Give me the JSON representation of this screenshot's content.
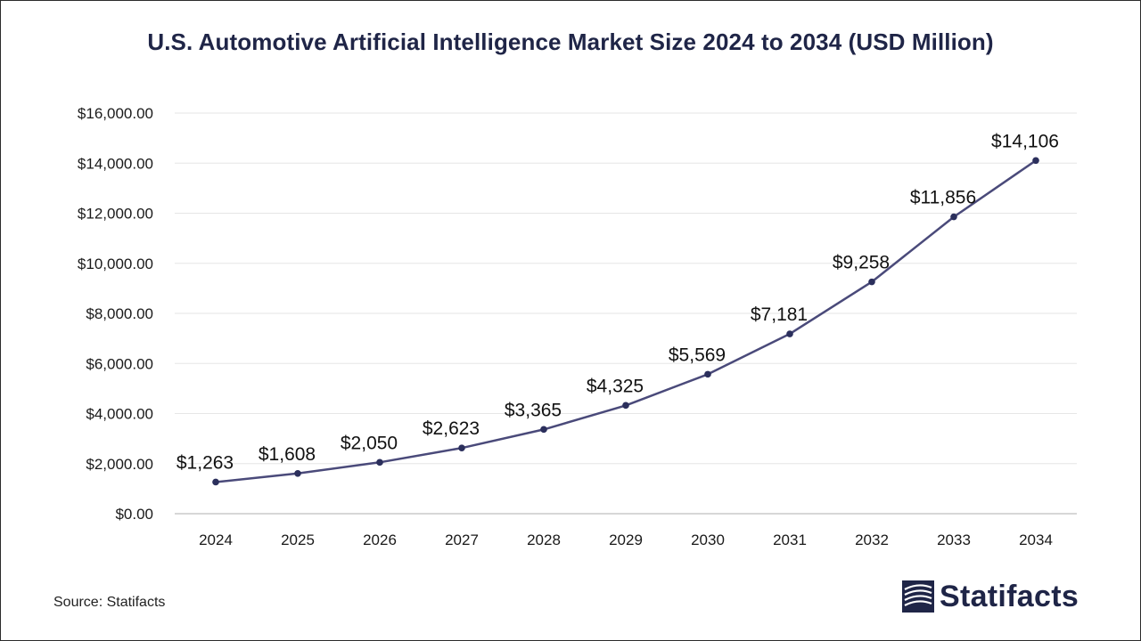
{
  "chart_data": {
    "type": "line",
    "title": "U.S. Automotive Artificial Intelligence Market Size 2024 to 2034 (USD Million)",
    "xlabel": "",
    "ylabel": "",
    "categories": [
      "2024",
      "2025",
      "2026",
      "2027",
      "2028",
      "2029",
      "2030",
      "2031",
      "2032",
      "2033",
      "2034"
    ],
    "values": [
      1263,
      1608,
      2050,
      2623,
      3365,
      4325,
      5569,
      7181,
      9258,
      11856,
      14106
    ],
    "data_labels": [
      "$1,263",
      "$1,608",
      "$2,050",
      "$2,623",
      "$3,365",
      "$4,325",
      "$5,569",
      "$7,181",
      "$9,258",
      "$11,856",
      "$14,106"
    ],
    "ylim": [
      0,
      16000
    ],
    "yticks": [
      0,
      2000,
      4000,
      6000,
      8000,
      10000,
      12000,
      14000,
      16000
    ],
    "ytick_labels": [
      "$0.00",
      "$2,000.00",
      "$4,000.00",
      "$6,000.00",
      "$8,000.00",
      "$10,000.00",
      "$12,000.00",
      "$14,000.00",
      "$16,000.00"
    ],
    "grid": true,
    "legend": "none",
    "line_color": "#4a4a7a",
    "marker_color": "#2b2f5c",
    "grid_color": "#e6e6e6",
    "axis_color": "#bfbfbf"
  },
  "source": "Source: Statifacts",
  "brand": {
    "name": "Statifacts",
    "color": "#1f2547"
  }
}
